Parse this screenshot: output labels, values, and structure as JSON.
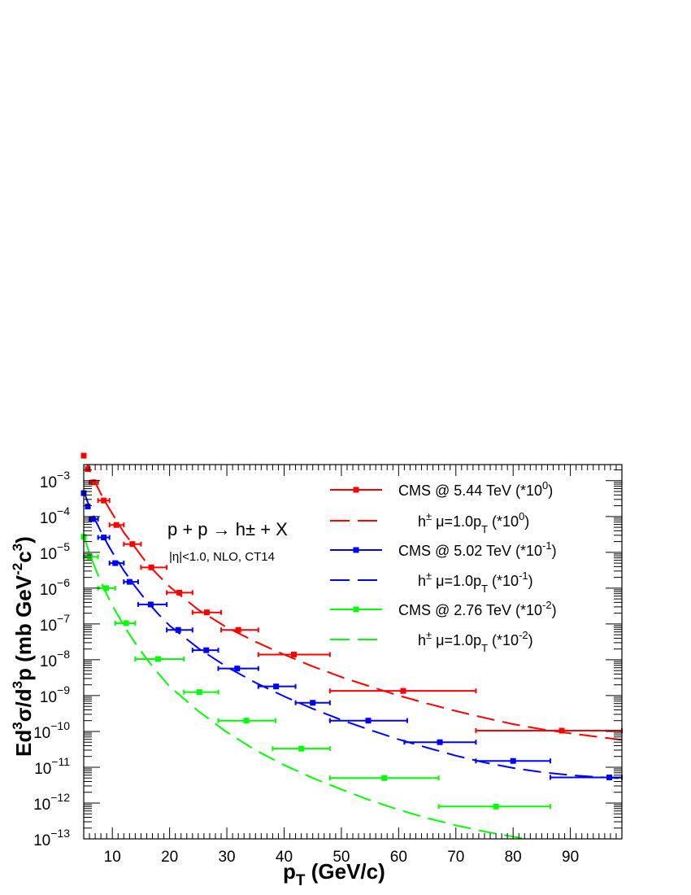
{
  "chart_data": {
    "type": "scatter",
    "xlabel": {
      "main": "p",
      "sub": "T",
      "rest": " (GeV/c)"
    },
    "ylabel": {
      "parts": [
        "Ed",
        "3",
        "σ/d",
        "3",
        "p (mb GeV",
        "-2",
        "c",
        "3",
        ")"
      ]
    },
    "xlim": [
      5,
      99
    ],
    "ylim_log10": [
      -13,
      -2.55
    ],
    "y_scale": "log",
    "x_ticks": [
      10,
      20,
      30,
      40,
      50,
      60,
      70,
      80,
      90
    ],
    "y_tick_exponents": [
      -13,
      -12,
      -11,
      -10,
      -9,
      -8,
      -7,
      -6,
      -5,
      -4,
      -3
    ],
    "grid": false,
    "legend_position": "top-right",
    "annotation_main": "p + p → h± + X",
    "annotation_sub": "|η|<1.0, NLO, CT14",
    "colors": {
      "red": "#ff0000",
      "blue": "#0000ff",
      "green": "#00ff00"
    },
    "series": [
      {
        "name": "CMS @ 5.44 TeV (*10^0)",
        "kind": "data",
        "color": "#ff0000",
        "points": [
          {
            "x": 5.0,
            "y": 0.005,
            "xlo": 5.0,
            "xhi": 5.0
          },
          {
            "x": 5.7,
            "y": 0.0021,
            "xlo": 5.5,
            "xhi": 6.0
          },
          {
            "x": 6.7,
            "y": 0.0009,
            "xlo": 6.0,
            "xhi": 7.5
          },
          {
            "x": 8.5,
            "y": 0.00028,
            "xlo": 7.5,
            "xhi": 9.5
          },
          {
            "x": 10.7,
            "y": 5.8e-05,
            "xlo": 9.5,
            "xhi": 12.0
          },
          {
            "x": 13.5,
            "y": 1.7e-05,
            "xlo": 12.0,
            "xhi": 15.0
          },
          {
            "x": 16.8,
            "y": 3.8e-06,
            "xlo": 15.0,
            "xhi": 19.5
          },
          {
            "x": 21.7,
            "y": 7.5e-07,
            "xlo": 19.5,
            "xhi": 24.0
          },
          {
            "x": 26.5,
            "y": 2.1e-07,
            "xlo": 24.0,
            "xhi": 29.0
          },
          {
            "x": 32.0,
            "y": 6.8e-08,
            "xlo": 29.0,
            "xhi": 35.5
          },
          {
            "x": 41.7,
            "y": 1.4e-08,
            "xlo": 35.5,
            "xhi": 48.0
          },
          {
            "x": 60.8,
            "y": 1.35e-09,
            "xlo": 48.0,
            "xhi": 73.5
          },
          {
            "x": 88.5,
            "y": 1.05e-10,
            "xlo": 73.5,
            "xhi": 99.0
          }
        ]
      },
      {
        "name": "h± μ=1.0pT (*10^0)",
        "kind": "curve",
        "color": "#ff0000",
        "points": [
          {
            "x": 5.0,
            "y": 0.005
          },
          {
            "x": 6.0,
            "y": 0.002
          },
          {
            "x": 7.0,
            "y": 0.0009
          },
          {
            "x": 8.0,
            "y": 0.00043
          },
          {
            "x": 9.0,
            "y": 0.00022
          },
          {
            "x": 10.0,
            "y": 0.00012
          },
          {
            "x": 12.0,
            "y": 3.6e-05
          },
          {
            "x": 14.0,
            "y": 1.35e-05
          },
          {
            "x": 16.0,
            "y": 5e-06
          },
          {
            "x": 18.0,
            "y": 2.3e-06
          },
          {
            "x": 20.0,
            "y": 1.1e-06
          },
          {
            "x": 25.0,
            "y": 2.5e-07
          },
          {
            "x": 30.0,
            "y": 8e-08
          },
          {
            "x": 35.0,
            "y": 3.2e-08
          },
          {
            "x": 40.0,
            "y": 1.4e-08
          },
          {
            "x": 45.0,
            "y": 6.5e-09
          },
          {
            "x": 50.0,
            "y": 3.3e-09
          },
          {
            "x": 55.0,
            "y": 1.8e-09
          },
          {
            "x": 60.0,
            "y": 1e-09
          },
          {
            "x": 65.0,
            "y": 6e-10
          },
          {
            "x": 70.0,
            "y": 3.7e-10
          },
          {
            "x": 75.0,
            "y": 2.4e-10
          },
          {
            "x": 80.0,
            "y": 1.6e-10
          },
          {
            "x": 85.0,
            "y": 1.15e-10
          },
          {
            "x": 90.0,
            "y": 8.8e-11
          },
          {
            "x": 95.0,
            "y": 7e-11
          },
          {
            "x": 99.0,
            "y": 5.8e-11
          }
        ]
      },
      {
        "name": "CMS @ 5.02 TeV (*10^-1)",
        "kind": "data",
        "color": "#0000ff",
        "points": [
          {
            "x": 5.0,
            "y": 0.00045,
            "xlo": 5.0,
            "xhi": 5.0
          },
          {
            "x": 5.7,
            "y": 0.00019,
            "xlo": 5.5,
            "xhi": 6.0
          },
          {
            "x": 6.6,
            "y": 8.5e-05,
            "xlo": 6.0,
            "xhi": 7.5
          },
          {
            "x": 8.5,
            "y": 2.6e-05,
            "xlo": 7.5,
            "xhi": 9.5
          },
          {
            "x": 10.5,
            "y": 5e-06,
            "xlo": 9.5,
            "xhi": 12.0
          },
          {
            "x": 13.0,
            "y": 1.5e-06,
            "xlo": 12.0,
            "xhi": 14.5
          },
          {
            "x": 16.7,
            "y": 3.5e-07,
            "xlo": 14.5,
            "xhi": 19.5
          },
          {
            "x": 21.5,
            "y": 6.8e-08,
            "xlo": 19.5,
            "xhi": 24.0
          },
          {
            "x": 26.4,
            "y": 1.85e-08,
            "xlo": 24.0,
            "xhi": 28.5
          },
          {
            "x": 31.8,
            "y": 5.7e-09,
            "xlo": 28.5,
            "xhi": 35.5
          },
          {
            "x": 38.6,
            "y": 1.8e-09,
            "xlo": 35.5,
            "xhi": 42.0
          },
          {
            "x": 45.0,
            "y": 6.3e-10,
            "xlo": 42.0,
            "xhi": 48.0
          },
          {
            "x": 54.7,
            "y": 2e-10,
            "xlo": 48.0,
            "xhi": 61.5
          },
          {
            "x": 67.2,
            "y": 5e-11,
            "xlo": 61.0,
            "xhi": 73.5
          },
          {
            "x": 80.0,
            "y": 1.5e-11,
            "xlo": 73.5,
            "xhi": 86.5
          },
          {
            "x": 96.8,
            "y": 5.2e-12,
            "xlo": 86.5,
            "xhi": 99.0
          }
        ]
      },
      {
        "name": "h± μ=1.0pT (*10^-1)",
        "kind": "curve",
        "color": "#0000ff",
        "points": [
          {
            "x": 5.0,
            "y": 0.0005
          },
          {
            "x": 6.0,
            "y": 0.00019
          },
          {
            "x": 7.0,
            "y": 8e-05
          },
          {
            "x": 8.0,
            "y": 3.8e-05
          },
          {
            "x": 9.0,
            "y": 1.9e-05
          },
          {
            "x": 10.0,
            "y": 1e-05
          },
          {
            "x": 12.0,
            "y": 3.1e-06
          },
          {
            "x": 14.0,
            "y": 1.1e-06
          },
          {
            "x": 16.0,
            "y": 4.3e-07
          },
          {
            "x": 18.0,
            "y": 1.9e-07
          },
          {
            "x": 20.0,
            "y": 9e-08
          },
          {
            "x": 25.0,
            "y": 2.1e-08
          },
          {
            "x": 30.0,
            "y": 6.3e-09
          },
          {
            "x": 35.0,
            "y": 2.3e-09
          },
          {
            "x": 40.0,
            "y": 9.5e-10
          },
          {
            "x": 45.0,
            "y": 4.3e-10
          },
          {
            "x": 50.0,
            "y": 2.1e-10
          },
          {
            "x": 55.0,
            "y": 1.1e-10
          },
          {
            "x": 60.0,
            "y": 6e-11
          },
          {
            "x": 65.0,
            "y": 3.5e-11
          },
          {
            "x": 70.0,
            "y": 2.1e-11
          },
          {
            "x": 75.0,
            "y": 1.35e-11
          },
          {
            "x": 80.0,
            "y": 9.5e-12
          },
          {
            "x": 85.0,
            "y": 7.3e-12
          },
          {
            "x": 90.0,
            "y": 6e-12
          },
          {
            "x": 95.0,
            "y": 5.3e-12
          },
          {
            "x": 99.0,
            "y": 4.9e-12
          }
        ]
      },
      {
        "name": "CMS @ 2.76 TeV (*10^-2)",
        "kind": "data",
        "color": "#00ff00",
        "points": [
          {
            "x": 5.0,
            "y": 2.7e-05,
            "xlo": 5.0,
            "xhi": 5.0
          },
          {
            "x": 6.1,
            "y": 7.5e-06,
            "xlo": 5.0,
            "xhi": 7.5
          },
          {
            "x": 8.9,
            "y": 1e-06,
            "xlo": 7.5,
            "xhi": 10.5
          },
          {
            "x": 12.4,
            "y": 1.05e-07,
            "xlo": 10.5,
            "xhi": 14.0
          },
          {
            "x": 18.0,
            "y": 1.05e-08,
            "xlo": 14.0,
            "xhi": 22.5
          },
          {
            "x": 25.2,
            "y": 1.25e-09,
            "xlo": 22.5,
            "xhi": 28.5
          },
          {
            "x": 33.4,
            "y": 2e-10,
            "xlo": 28.5,
            "xhi": 38.5
          },
          {
            "x": 43.0,
            "y": 3.3e-11,
            "xlo": 38.0,
            "xhi": 48.0
          },
          {
            "x": 57.5,
            "y": 5e-12,
            "xlo": 48.0,
            "xhi": 67.0
          },
          {
            "x": 77.0,
            "y": 8e-13,
            "xlo": 67.0,
            "xhi": 86.5
          }
        ]
      },
      {
        "name": "h± μ=1.0pT (*10^-2)",
        "kind": "curve",
        "color": "#00ff00",
        "points": [
          {
            "x": 5.0,
            "y": 3e-05
          },
          {
            "x": 6.0,
            "y": 9.5e-06
          },
          {
            "x": 7.0,
            "y": 3.6e-06
          },
          {
            "x": 8.0,
            "y": 1.5e-06
          },
          {
            "x": 9.0,
            "y": 6.8e-07
          },
          {
            "x": 10.0,
            "y": 3.3e-07
          },
          {
            "x": 12.0,
            "y": 9e-08
          },
          {
            "x": 14.0,
            "y": 2.9e-08
          },
          {
            "x": 16.0,
            "y": 1.05e-08
          },
          {
            "x": 18.0,
            "y": 4.2e-09
          },
          {
            "x": 20.0,
            "y": 1.8e-09
          },
          {
            "x": 25.0,
            "y": 3.7e-10
          },
          {
            "x": 30.0,
            "y": 9.5e-11
          },
          {
            "x": 35.0,
            "y": 3e-11
          },
          {
            "x": 40.0,
            "y": 1.15e-11
          },
          {
            "x": 45.0,
            "y": 5e-12
          },
          {
            "x": 50.0,
            "y": 2.4e-12
          },
          {
            "x": 55.0,
            "y": 1.2e-12
          },
          {
            "x": 60.0,
            "y": 6.5e-13
          },
          {
            "x": 65.0,
            "y": 3.8e-13
          },
          {
            "x": 70.0,
            "y": 2.4e-13
          },
          {
            "x": 75.0,
            "y": 1.6e-13
          },
          {
            "x": 80.0,
            "y": 1.15e-13
          },
          {
            "x": 85.0,
            "y": 8.5e-14
          },
          {
            "x": 90.0,
            "y": 6.5e-14
          },
          {
            "x": 95.0,
            "y": 5.2e-14
          },
          {
            "x": 99.0,
            "y": 4.5e-14
          }
        ]
      }
    ],
    "legend": [
      {
        "series": 0,
        "style": "data",
        "text": [
          [
            "CMS  @ 5.44 TeV (*10",
            0
          ],
          [
            "0",
            1
          ],
          [
            ")",
            0
          ]
        ]
      },
      {
        "series": 1,
        "style": "curve",
        "text": [
          [
            "h",
            0
          ],
          [
            "±",
            1
          ],
          [
            "       μ=1.0p",
            0
          ],
          [
            "T",
            -1
          ],
          [
            " (*10",
            0
          ],
          [
            "0",
            1
          ],
          [
            ")",
            0
          ]
        ]
      },
      {
        "series": 2,
        "style": "data",
        "text": [
          [
            "CMS  @ 5.02 TeV (*10",
            0
          ],
          [
            "-1",
            1
          ],
          [
            ")",
            0
          ]
        ]
      },
      {
        "series": 3,
        "style": "curve",
        "text": [
          [
            "h",
            0
          ],
          [
            "±",
            1
          ],
          [
            "       μ=1.0p",
            0
          ],
          [
            "T",
            -1
          ],
          [
            " (*10",
            0
          ],
          [
            "-1",
            1
          ],
          [
            ")",
            0
          ]
        ]
      },
      {
        "series": 4,
        "style": "data",
        "text": [
          [
            "CMS  @ 2.76 TeV (*10",
            0
          ],
          [
            "-2",
            1
          ],
          [
            ")",
            0
          ]
        ]
      },
      {
        "series": 5,
        "style": "curve",
        "text": [
          [
            "h",
            0
          ],
          [
            "±",
            1
          ],
          [
            "       μ=1.0p",
            0
          ],
          [
            "T",
            -1
          ],
          [
            " (*10",
            0
          ],
          [
            "-2",
            1
          ],
          [
            ")",
            0
          ]
        ]
      }
    ]
  }
}
